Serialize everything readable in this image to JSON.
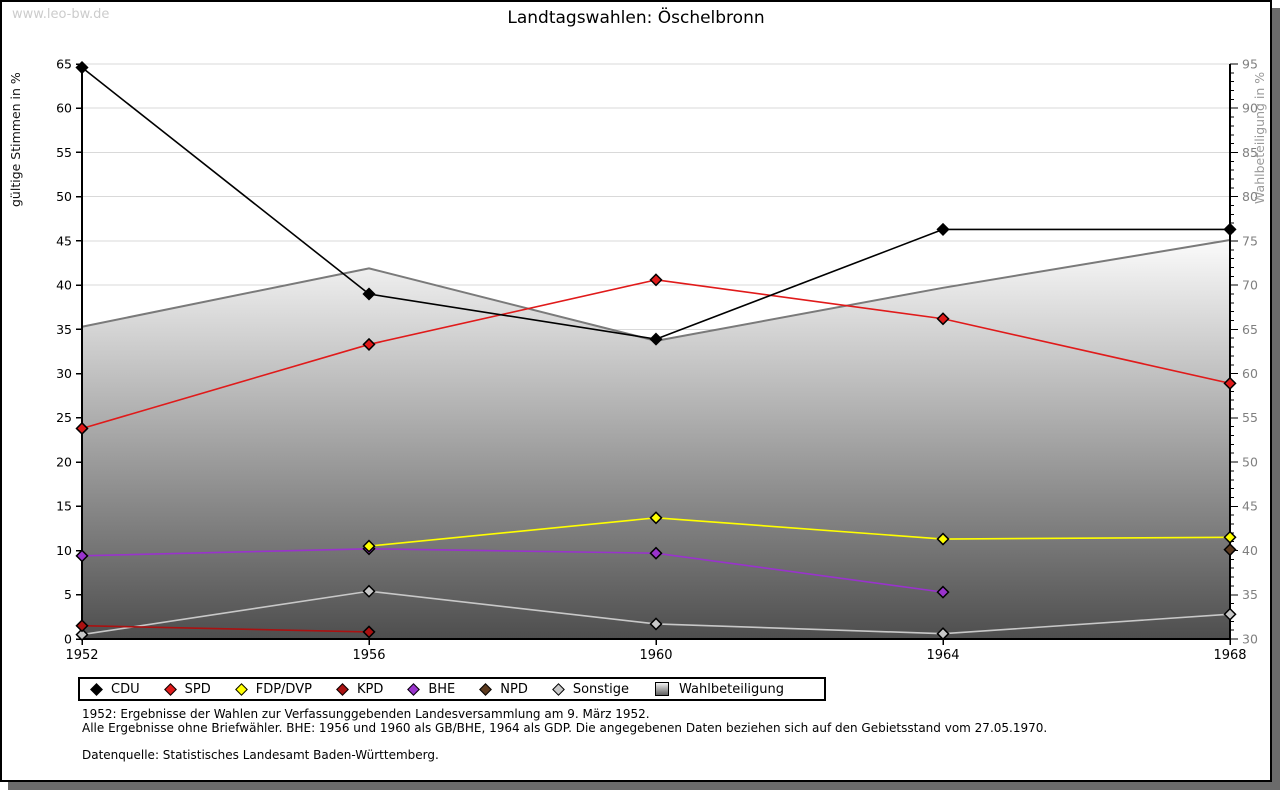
{
  "watermark": "www.leo-bw.de",
  "footnotes": [
    "1952: Ergebnisse der Wahlen zur Verfassunggebenden Landesversammlung am 9. März 1952.",
    "Alle Ergebnisse ohne Briefwähler. BHE: 1956 und 1960 als GB/BHE, 1964 als GDP. Die angegebenen Daten beziehen sich auf den Gebietsstand vom 27.05.1970.",
    "Datenquelle: Statistisches Landesamt Baden-Württemberg."
  ],
  "chart_data": {
    "type": "line",
    "title": "Landtagswahlen: Öschelbronn",
    "x": [
      1952,
      1956,
      1960,
      1964,
      1968
    ],
    "left_axis": {
      "label": "gültige Stimmen in %",
      "min": 0,
      "max": 65,
      "step": 5
    },
    "right_axis": {
      "label": "Wahlbeteiligung in %",
      "min": 30,
      "max": 95,
      "step": 5,
      "minor_step": 1
    },
    "grid": "horizontal",
    "legend_position": "bottom",
    "series": [
      {
        "name": "CDU",
        "color": "#000000",
        "axis": "left",
        "values": [
          64.6,
          39.0,
          33.9,
          46.3,
          46.3
        ]
      },
      {
        "name": "SPD",
        "color": "#e01a1a",
        "axis": "left",
        "values": [
          23.8,
          33.3,
          40.6,
          36.2,
          28.9
        ]
      },
      {
        "name": "FDP/DVP",
        "color": "#ffff00",
        "axis": "left",
        "values": [
          null,
          10.5,
          13.7,
          11.3,
          11.5
        ]
      },
      {
        "name": "KPD",
        "color": "#aa1111",
        "axis": "left",
        "values": [
          1.5,
          0.8,
          null,
          null,
          null
        ]
      },
      {
        "name": "BHE",
        "color": "#9933cc",
        "axis": "left",
        "values": [
          9.4,
          10.2,
          9.7,
          5.3,
          null
        ]
      },
      {
        "name": "NPD",
        "color": "#5c3a1e",
        "axis": "left",
        "values": [
          null,
          null,
          null,
          null,
          10.1
        ]
      },
      {
        "name": "Sonstige",
        "color": "#c8c8c8",
        "axis": "left",
        "values": [
          0.5,
          5.4,
          1.7,
          0.6,
          2.8
        ]
      }
    ],
    "area_series": {
      "name": "Wahlbeteiligung",
      "axis": "right",
      "values": [
        65.3,
        71.9,
        63.7,
        69.7,
        75.1
      ],
      "line_color": "#7a7a7a",
      "gradient_top": "#fbfbfb",
      "gradient_bottom": "#4e4e4e"
    }
  }
}
